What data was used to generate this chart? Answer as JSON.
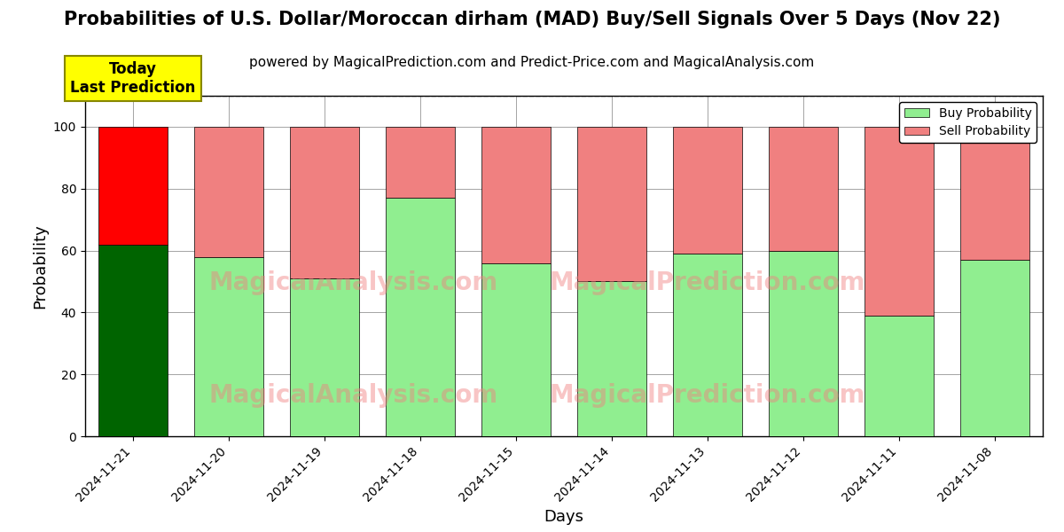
{
  "title": "Probabilities of U.S. Dollar/Moroccan dirham (MAD) Buy/Sell Signals Over 5 Days (Nov 22)",
  "subtitle": "powered by MagicalPrediction.com and Predict-Price.com and MagicalAnalysis.com",
  "xlabel": "Days",
  "ylabel": "Probability",
  "categories": [
    "2024-11-21",
    "2024-11-20",
    "2024-11-19",
    "2024-11-18",
    "2024-11-15",
    "2024-11-14",
    "2024-11-13",
    "2024-11-12",
    "2024-11-11",
    "2024-11-08"
  ],
  "buy_values": [
    62,
    58,
    51,
    77,
    56,
    50,
    59,
    60,
    39,
    57
  ],
  "sell_values": [
    38,
    42,
    49,
    23,
    44,
    50,
    41,
    40,
    61,
    43
  ],
  "today_buy_color": "#006400",
  "today_sell_color": "#FF0000",
  "buy_color": "#90EE90",
  "sell_color": "#F08080",
  "ylim": [
    0,
    110
  ],
  "yticks": [
    0,
    20,
    40,
    60,
    80,
    100
  ],
  "dashed_line_y": 110,
  "watermark_text1": "MagicalAnalysis.com",
  "watermark_text2": "MagicalPrediction.com",
  "annotation_text": "Today\nLast Prediction",
  "annotation_bg": "#FFFF00",
  "legend_buy_label": "Buy Probability",
  "legend_sell_label": "Sell Probability",
  "title_fontsize": 15,
  "subtitle_fontsize": 11,
  "label_fontsize": 13,
  "tick_fontsize": 10
}
